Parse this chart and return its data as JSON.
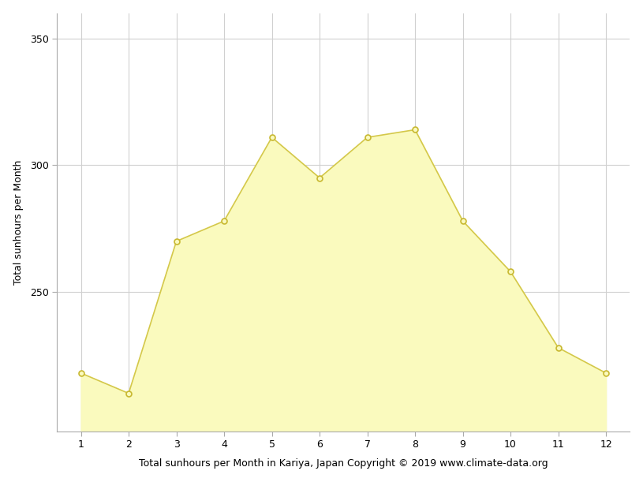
{
  "months": [
    1,
    2,
    3,
    4,
    5,
    6,
    7,
    8,
    9,
    10,
    11,
    12
  ],
  "sunhours": [
    218,
    210,
    270,
    278,
    311,
    295,
    311,
    314,
    278,
    258,
    228,
    218
  ],
  "fill_color": "#FAFABE",
  "line_color": "#D4C84A",
  "marker_face_color": "#FAFABE",
  "marker_edge_color": "#C8B830",
  "ylabel": "Total sunhours per Month",
  "xlabel": "Total sunhours per Month in Kariya, Japan Copyright © 2019 www.climate-data.org",
  "ylim_min": 195,
  "ylim_max": 360,
  "yticks": [
    250,
    300,
    350
  ],
  "xticks": [
    1,
    2,
    3,
    4,
    5,
    6,
    7,
    8,
    9,
    10,
    11,
    12
  ],
  "grid_color": "#d0d0d0",
  "bg_color": "#ffffff",
  "axis_fontsize": 9,
  "tick_fontsize": 9,
  "fill_baseline": 195
}
